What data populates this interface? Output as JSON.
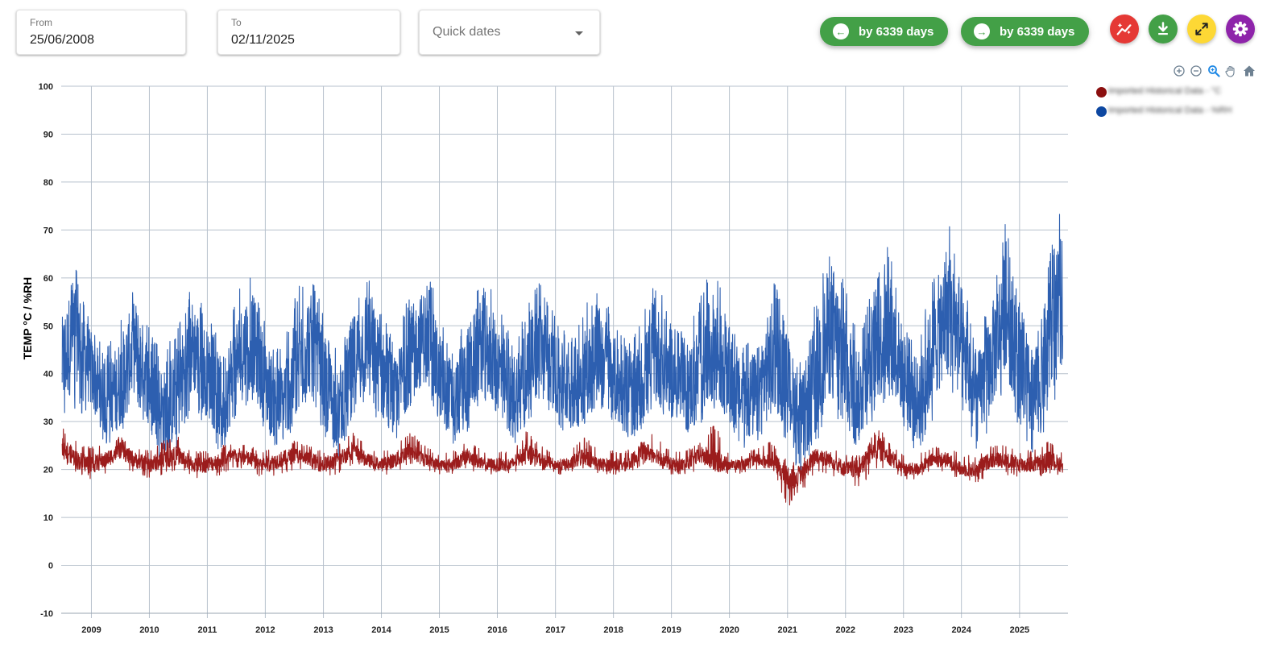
{
  "filters": {
    "from": {
      "label": "From",
      "value": "25/06/2008"
    },
    "to": {
      "label": "To",
      "value": "02/11/2025"
    },
    "quick_dates": {
      "placeholder": "Quick dates"
    }
  },
  "navigation": {
    "back_label": "by 6339 days",
    "forward_label": "by 6339 days"
  },
  "actions": [
    "trend-icon",
    "download-icon",
    "fullscreen-icon",
    "settings-icon"
  ],
  "colors": {
    "green": "#43a047",
    "red": "#e53935",
    "yellow": "#fdd835",
    "purple": "#8e24aa",
    "temp_series": "#9b1c1c",
    "rh_series": "#2d5fb0"
  },
  "legend": [
    {
      "name": "Imported Historical Data - °C",
      "color": "#8b0f0f"
    },
    {
      "name": "Imported Historical Data - %RH",
      "color": "#0d47a1"
    }
  ],
  "chart_data": {
    "type": "line",
    "ylabel": "TEMP °C / %RH",
    "ylim": [
      -10,
      100
    ],
    "yticks": [
      -10,
      0,
      10,
      20,
      30,
      40,
      50,
      60,
      70,
      80,
      90,
      100
    ],
    "xlim": [
      "2008-06-25",
      "2025-11-02"
    ],
    "xticks": [
      "2009",
      "2010",
      "2011",
      "2012",
      "2013",
      "2014",
      "2015",
      "2016",
      "2017",
      "2018",
      "2019",
      "2020",
      "2021",
      "2022",
      "2023",
      "2024",
      "2025"
    ],
    "grid": true,
    "legend_position": "top-right",
    "series": [
      {
        "name": "Imported Historical Data - %RH",
        "color": "#2d5fb0",
        "x": [
          "2008-07",
          "2008-10",
          "2009-01",
          "2009-04",
          "2009-07",
          "2009-10",
          "2010-01",
          "2010-04",
          "2010-07",
          "2010-10",
          "2011-01",
          "2011-04",
          "2011-07",
          "2011-10",
          "2012-01",
          "2012-04",
          "2012-07",
          "2012-10",
          "2013-01",
          "2013-04",
          "2013-07",
          "2013-10",
          "2014-01",
          "2014-04",
          "2014-07",
          "2014-10",
          "2015-01",
          "2015-04",
          "2015-07",
          "2015-10",
          "2016-01",
          "2016-04",
          "2016-07",
          "2016-10",
          "2017-01",
          "2017-04",
          "2017-07",
          "2017-10",
          "2018-01",
          "2018-04",
          "2018-07",
          "2018-10",
          "2019-01",
          "2019-04",
          "2019-07",
          "2019-10",
          "2020-01",
          "2020-04",
          "2020-07",
          "2020-10",
          "2021-01",
          "2021-04",
          "2021-07",
          "2021-10",
          "2022-01",
          "2022-04",
          "2022-07",
          "2022-10",
          "2023-01",
          "2023-04",
          "2023-07",
          "2023-10",
          "2024-01",
          "2024-04",
          "2024-07",
          "2024-10",
          "2025-01",
          "2025-04",
          "2025-07",
          "2025-10"
        ],
        "min": [
          30,
          32,
          30,
          25,
          27,
          33,
          28,
          20,
          25,
          33,
          28,
          23,
          30,
          35,
          28,
          23,
          29,
          35,
          27,
          22,
          30,
          35,
          28,
          25,
          32,
          37,
          30,
          25,
          28,
          35,
          31,
          24,
          29,
          35,
          30,
          26,
          28,
          33,
          30,
          25,
          27,
          32,
          29,
          26,
          27,
          33,
          29,
          24,
          26,
          32,
          25,
          18,
          25,
          32,
          27,
          24,
          30,
          35,
          28,
          23,
          30,
          38,
          30,
          22,
          28,
          38,
          28,
          22,
          30,
          40
        ],
        "mean": [
          42,
          50,
          40,
          34,
          38,
          46,
          38,
          32,
          36,
          46,
          40,
          34,
          42,
          48,
          38,
          33,
          40,
          47,
          39,
          32,
          42,
          48,
          40,
          35,
          44,
          48,
          40,
          34,
          40,
          47,
          42,
          35,
          40,
          46,
          40,
          36,
          40,
          45,
          40,
          34,
          38,
          44,
          40,
          36,
          40,
          46,
          38,
          34,
          36,
          44,
          38,
          30,
          40,
          50,
          42,
          35,
          44,
          50,
          40,
          34,
          44,
          54,
          46,
          34,
          42,
          54,
          42,
          34,
          46,
          56
        ],
        "max": [
          56,
          63,
          50,
          45,
          52,
          59,
          50,
          43,
          52,
          59,
          52,
          47,
          56,
          63,
          52,
          45,
          56,
          64,
          52,
          44,
          56,
          62,
          54,
          46,
          58,
          63,
          54,
          45,
          55,
          60,
          56,
          47,
          54,
          60,
          52,
          48,
          54,
          58,
          52,
          46,
          52,
          60,
          52,
          48,
          56,
          64,
          50,
          46,
          52,
          63,
          48,
          42,
          58,
          70,
          58,
          48,
          60,
          68,
          52,
          46,
          60,
          74,
          62,
          46,
          56,
          72,
          56,
          46,
          64,
          77
        ]
      },
      {
        "name": "Imported Historical Data - °C",
        "color": "#9b1c1c",
        "x": [
          "2008-07",
          "2008-10",
          "2009-01",
          "2009-04",
          "2009-07",
          "2009-10",
          "2010-01",
          "2010-04",
          "2010-07",
          "2010-10",
          "2011-01",
          "2011-04",
          "2011-07",
          "2011-10",
          "2012-01",
          "2012-04",
          "2012-07",
          "2012-10",
          "2013-01",
          "2013-04",
          "2013-07",
          "2013-10",
          "2014-01",
          "2014-04",
          "2014-07",
          "2014-10",
          "2015-01",
          "2015-04",
          "2015-07",
          "2015-10",
          "2016-01",
          "2016-04",
          "2016-07",
          "2016-10",
          "2017-01",
          "2017-04",
          "2017-07",
          "2017-10",
          "2018-01",
          "2018-04",
          "2018-07",
          "2018-10",
          "2019-01",
          "2019-04",
          "2019-07",
          "2019-10",
          "2020-01",
          "2020-04",
          "2020-07",
          "2020-10",
          "2021-01",
          "2021-04",
          "2021-07",
          "2021-10",
          "2022-01",
          "2022-04",
          "2022-07",
          "2022-10",
          "2023-01",
          "2023-04",
          "2023-07",
          "2023-10",
          "2024-01",
          "2024-04",
          "2024-07",
          "2024-10",
          "2025-01",
          "2025-04",
          "2025-07",
          "2025-10"
        ],
        "min": [
          22,
          19,
          18,
          19,
          21,
          19,
          18,
          19,
          20,
          18,
          18,
          19,
          20,
          19,
          18,
          19,
          20,
          19,
          18,
          19,
          21,
          20,
          19,
          19,
          21,
          20,
          19,
          19,
          20,
          19,
          19,
          19,
          21,
          20,
          19,
          19,
          20,
          19,
          19,
          19,
          21,
          21,
          19,
          19,
          20,
          20,
          19,
          19,
          20,
          20,
          12,
          15,
          19,
          19,
          17,
          16,
          20,
          19,
          18,
          18,
          20,
          19,
          18,
          17,
          19,
          19,
          18,
          18,
          19,
          18
        ],
        "mean": [
          25,
          22,
          21,
          22,
          24,
          22,
          21,
          22,
          23,
          21,
          21,
          22,
          23,
          22,
          21,
          22,
          23,
          22,
          21,
          22,
          24,
          22,
          21,
          22,
          24,
          22,
          21,
          21,
          23,
          21,
          21,
          21,
          24,
          22,
          21,
          21,
          23,
          21,
          21,
          21,
          24,
          23,
          21,
          21,
          23,
          22,
          21,
          21,
          22,
          22,
          18,
          19,
          23,
          22,
          20,
          20,
          25,
          23,
          20,
          20,
          22,
          22,
          20,
          20,
          22,
          22,
          21,
          21,
          22,
          21
        ],
        "max": [
          29,
          26,
          25,
          25,
          27,
          25,
          24,
          26,
          27,
          24,
          24,
          25,
          26,
          25,
          24,
          25,
          26,
          25,
          24,
          25,
          28,
          25,
          24,
          25,
          28,
          25,
          23,
          24,
          26,
          24,
          24,
          24,
          28,
          25,
          23,
          24,
          27,
          24,
          24,
          24,
          28,
          27,
          24,
          24,
          26,
          30,
          23,
          23,
          25,
          26,
          22,
          22,
          26,
          25,
          23,
          23,
          30,
          26,
          23,
          23,
          25,
          25,
          23,
          23,
          25,
          25,
          24,
          24,
          26,
          24
        ]
      }
    ]
  }
}
